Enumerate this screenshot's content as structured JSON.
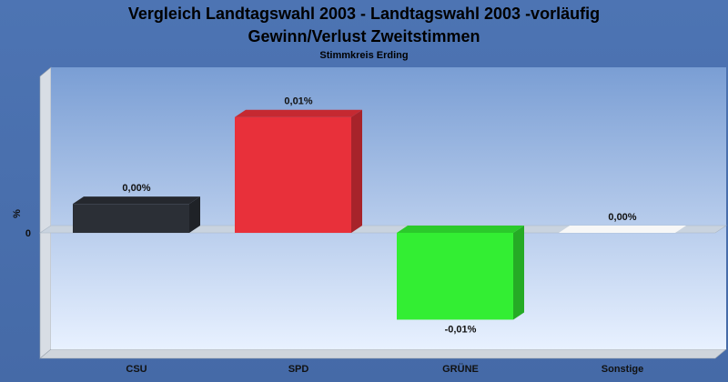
{
  "chart_data": {
    "type": "bar",
    "title": "Vergleich Landtagswahl 2003 - Landtagswahl 2003 -vorläufig",
    "subtitle": "Gewinn/Verlust Zweitstimmen",
    "subsubtitle": "Stimmkreis Erding",
    "ylabel": "%",
    "zero_label": "0",
    "categories": [
      "CSU",
      "SPD",
      "GRÜNE",
      "Sonstige"
    ],
    "values": [
      0.0025,
      0.01,
      -0.0075,
      0.0
    ],
    "value_labels": [
      "0,00%",
      "0,01%",
      "-0,01%",
      "0,00%"
    ],
    "colors": [
      "#2b2f36",
      "#e8303a",
      "#33ee33",
      "#ffffff"
    ],
    "ylim": [
      -0.0078,
      0.011
    ],
    "grid": false,
    "legend": "none"
  }
}
